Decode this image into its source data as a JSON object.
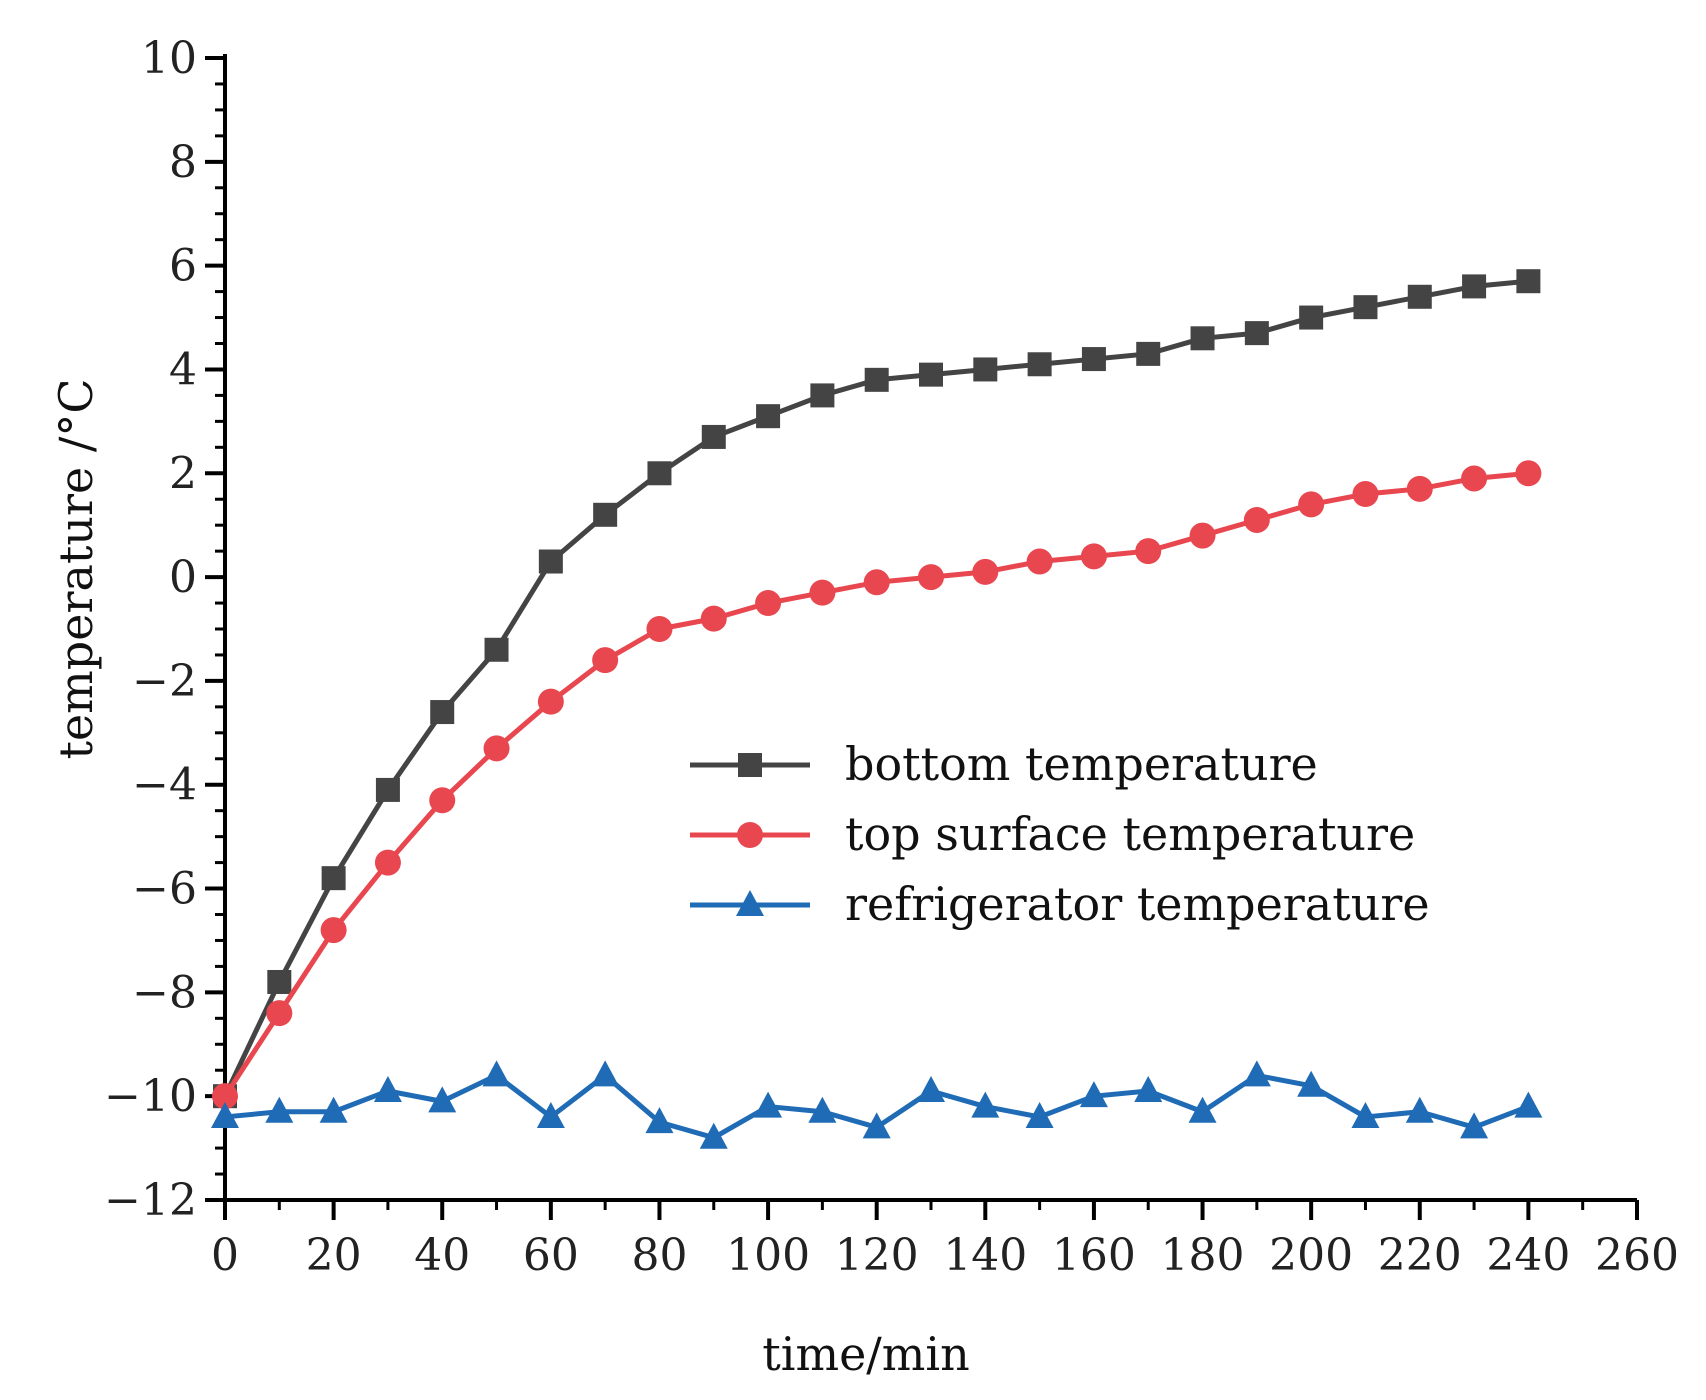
{
  "chart_data": {
    "type": "line",
    "title": "",
    "xlabel": "time/min",
    "ylabel": "temperature /°C",
    "xlim": [
      0,
      260
    ],
    "ylim": [
      -12,
      10
    ],
    "xticks": [
      0,
      20,
      40,
      60,
      80,
      100,
      120,
      140,
      160,
      180,
      200,
      220,
      240,
      260
    ],
    "yticks": [
      10,
      8,
      6,
      4,
      2,
      0,
      -2,
      -4,
      -6,
      -8,
      -10,
      -12
    ],
    "xtick_labels": [
      "0",
      "20",
      "40",
      "60",
      "80",
      "100",
      "120",
      "140",
      "160",
      "180",
      "200",
      "220",
      "240",
      "260"
    ],
    "ytick_labels": [
      "10",
      "8",
      "6",
      "4",
      "2",
      "0",
      "−2",
      "−4",
      "−6",
      "−8",
      "−10",
      "−12"
    ],
    "grid": false,
    "legend_position": "center-right",
    "x": [
      0,
      10,
      20,
      30,
      40,
      50,
      60,
      70,
      80,
      90,
      100,
      110,
      120,
      130,
      140,
      150,
      160,
      170,
      180,
      190,
      200,
      210,
      220,
      230,
      240
    ],
    "series": [
      {
        "name": "bottom temperature",
        "color": "#444444",
        "marker": "square",
        "values": [
          -10.0,
          -7.8,
          -5.8,
          -4.1,
          -2.6,
          -1.4,
          0.3,
          1.2,
          2.0,
          2.7,
          3.1,
          3.5,
          3.8,
          3.9,
          4.0,
          4.1,
          4.2,
          4.3,
          4.6,
          4.7,
          5.0,
          5.2,
          5.4,
          5.6,
          5.7
        ]
      },
      {
        "name": "top surface temperature",
        "color": "#e8474f",
        "marker": "circle",
        "values": [
          -10.0,
          -8.4,
          -6.8,
          -5.5,
          -4.3,
          -3.3,
          -2.4,
          -1.6,
          -1.0,
          -0.8,
          -0.5,
          -0.3,
          -0.1,
          0.0,
          0.1,
          0.3,
          0.4,
          0.5,
          0.8,
          1.1,
          1.4,
          1.6,
          1.7,
          1.9,
          2.0
        ]
      },
      {
        "name": "refrigerator temperature",
        "color": "#1f6bb5",
        "marker": "triangle",
        "values": [
          -10.4,
          -10.3,
          -10.3,
          -9.9,
          -10.1,
          -9.6,
          -10.4,
          -9.6,
          -10.5,
          -10.8,
          -10.2,
          -10.3,
          -10.6,
          -9.9,
          -10.2,
          -10.4,
          -10.0,
          -9.9,
          -10.3,
          -9.6,
          -9.8,
          -10.4,
          -10.3,
          -10.6,
          -10.2
        ]
      }
    ]
  }
}
